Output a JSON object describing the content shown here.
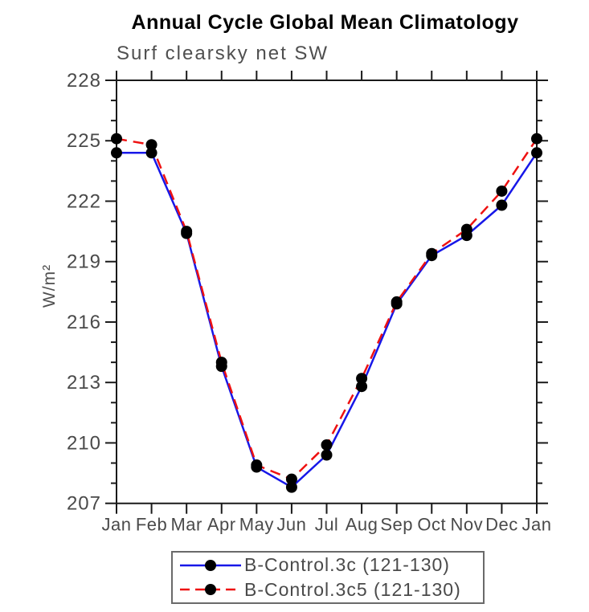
{
  "title": "Annual Cycle Global Mean Climatology",
  "subtitle": "Surf clearsky net SW",
  "ylabel": "W/m²",
  "colors": {
    "series1": "#1717e8",
    "series2": "#ee1111",
    "marker": "#000000",
    "axis": "#1a1a1a",
    "tick_label": "#4a4a4a"
  },
  "chart_data": {
    "type": "line",
    "title": "Annual Cycle Global Mean Climatology",
    "subtitle": "Surf clearsky net SW",
    "ylabel": "W/m²",
    "xlabel": "",
    "categories": [
      "Jan",
      "Feb",
      "Mar",
      "Apr",
      "May",
      "Jun",
      "Jul",
      "Aug",
      "Sep",
      "Oct",
      "Nov",
      "Dec",
      "Jan"
    ],
    "series": [
      {
        "name": "B-Control.3c (121-130)",
        "color": "#1717e8",
        "style": "solid",
        "values": [
          224.4,
          224.4,
          220.4,
          213.8,
          208.8,
          207.8,
          209.4,
          212.8,
          216.9,
          219.3,
          220.3,
          221.8,
          224.4
        ]
      },
      {
        "name": "B-Control.3c5 (121-130)",
        "color": "#ee1111",
        "style": "dashed",
        "values": [
          225.1,
          224.8,
          220.5,
          214.0,
          208.9,
          208.2,
          209.9,
          213.2,
          217.0,
          219.4,
          220.6,
          222.5,
          225.1
        ]
      }
    ],
    "ylim": [
      207,
      228
    ],
    "yticks_major": [
      207,
      210,
      213,
      216,
      219,
      222,
      225,
      228
    ],
    "ytick_minor_step": 1,
    "grid": false,
    "marker": "filled-circle",
    "marker_color": "#000000",
    "legend_position": "bottom-center"
  }
}
